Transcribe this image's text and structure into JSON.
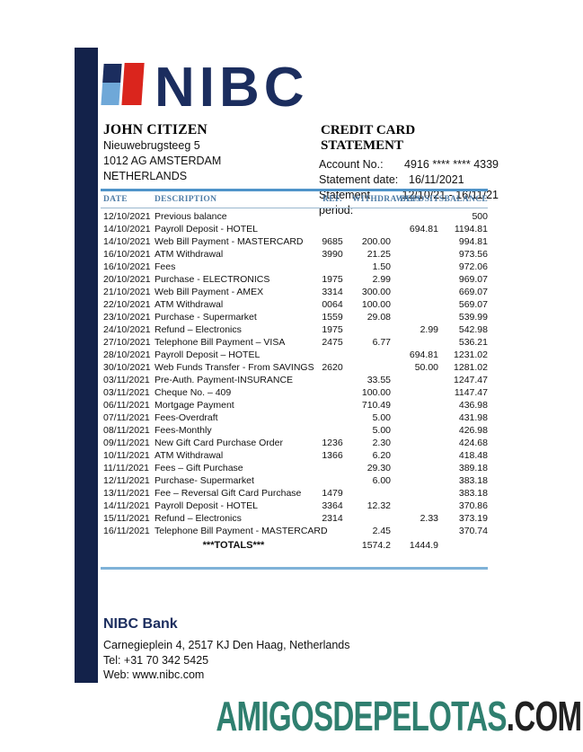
{
  "logo": {
    "text": "NIBC",
    "navy": "#1b2d5e",
    "light_blue": "#6fa8d8",
    "red": "#da251d"
  },
  "customer": {
    "name": "JOHN CITIZEN",
    "address_lines": [
      "Nieuwebrugsteeg 5",
      "1012 AG AMSTERDAM",
      "NETHERLANDS"
    ]
  },
  "statement": {
    "title": "CREDIT CARD STATEMENT",
    "fields": [
      {
        "label": "Account No.:",
        "value": "4916 **** **** 4339"
      },
      {
        "label": "Statement date:",
        "value": "16/11/2021"
      },
      {
        "label": "Statement period:",
        "value": "12/10/21 - 16/11/21"
      }
    ]
  },
  "table": {
    "columns": [
      "DATE",
      "DESCRIPTION",
      "REF.",
      "WITHDRAWALS",
      "DEPOSITS",
      "BALANCE"
    ],
    "header_color": "#4e7ca6",
    "rows": [
      {
        "date": "12/10/2021",
        "description": "Previous balance",
        "ref": "",
        "withdrawal": "",
        "deposit": "",
        "balance": "500"
      },
      {
        "date": "14/10/2021",
        "description": "Payroll Deposit - HOTEL",
        "ref": "",
        "withdrawal": "",
        "deposit": "694.81",
        "balance": "1194.81"
      },
      {
        "date": "14/10/2021",
        "description": "Web Bill Payment  - MASTERCARD",
        "ref": "9685",
        "withdrawal": "200.00",
        "deposit": "",
        "balance": "994.81"
      },
      {
        "date": "16/10/2021",
        "description": "ATM Withdrawal",
        "ref": "3990",
        "withdrawal": "21.25",
        "deposit": "",
        "balance": "973.56"
      },
      {
        "date": "16/10/2021",
        "description": "Fees",
        "ref": "",
        "withdrawal": "1.50",
        "deposit": "",
        "balance": "972.06"
      },
      {
        "date": "20/10/2021",
        "description": "Purchase  - ELECTRONICS",
        "ref": "1975",
        "withdrawal": "2.99",
        "deposit": "",
        "balance": "969.07"
      },
      {
        "date": "21/10/2021",
        "description": "Web Bill Payment - AMEX",
        "ref": "3314",
        "withdrawal": "300.00",
        "deposit": "",
        "balance": "669.07"
      },
      {
        "date": "22/10/2021",
        "description": "ATM Withdrawal",
        "ref": "0064",
        "withdrawal": "100.00",
        "deposit": "",
        "balance": "569.07"
      },
      {
        "date": "23/10/2021",
        "description": "Purchase - Supermarket",
        "ref": "1559",
        "withdrawal": "29.08",
        "deposit": "",
        "balance": "539.99"
      },
      {
        "date": "24/10/2021",
        "description": "Refund – Electronics",
        "ref": "1975",
        "withdrawal": "",
        "deposit": "2.99",
        "balance": "542.98"
      },
      {
        "date": "27/10/2021",
        "description": "Telephone Bill Payment – VISA",
        "ref": "2475",
        "withdrawal": "6.77",
        "deposit": "",
        "balance": "536.21"
      },
      {
        "date": "28/10/2021",
        "description": "Payroll Deposit – HOTEL",
        "ref": "",
        "withdrawal": "",
        "deposit": "694.81",
        "balance": "1231.02"
      },
      {
        "date": "30/10/2021",
        "description": "Web Funds Transfer - From SAVINGS",
        "ref": "2620",
        "withdrawal": "",
        "deposit": "50.00",
        "balance": "1281.02"
      },
      {
        "date": "03/11/2021",
        "description": "Pre-Auth. Payment-INSURANCE",
        "ref": "",
        "withdrawal": "33.55",
        "deposit": "",
        "balance": "1247.47"
      },
      {
        "date": "03/11/2021",
        "description": "Cheque No. – 409",
        "ref": "",
        "withdrawal": "100.00",
        "deposit": "",
        "balance": "1147.47"
      },
      {
        "date": "06/11/2021",
        "description": "Mortgage Payment",
        "ref": "",
        "withdrawal": "710.49",
        "deposit": "",
        "balance": "436.98"
      },
      {
        "date": "07/11/2021",
        "description": "Fees-Overdraft",
        "ref": "",
        "withdrawal": "5.00",
        "deposit": "",
        "balance": "431.98"
      },
      {
        "date": "08/11/2021",
        "description": "Fees-Monthly",
        "ref": "",
        "withdrawal": "5.00",
        "deposit": "",
        "balance": "426.98"
      },
      {
        "date": "09/11/2021",
        "description": "New Gift Card Purchase Order",
        "ref": "1236",
        "withdrawal": "2.30",
        "deposit": "",
        "balance": "424.68"
      },
      {
        "date": "10/11/2021",
        "description": "ATM Withdrawal",
        "ref": "1366",
        "withdrawal": "6.20",
        "deposit": "",
        "balance": "418.48"
      },
      {
        "date": "11/11/2021",
        "description": "Fees – Gift Purchase",
        "ref": "",
        "withdrawal": "29.30",
        "deposit": "",
        "balance": "389.18"
      },
      {
        "date": "12/11/2021",
        "description": "Purchase- Supermarket",
        "ref": "",
        "withdrawal": "6.00",
        "deposit": "",
        "balance": "383.18"
      },
      {
        "date": "13/11/2021",
        "description": "Fee – Reversal Gift Card Purchase",
        "ref": "1479",
        "withdrawal": "",
        "deposit": "",
        "balance": "383.18"
      },
      {
        "date": "14/11/2021",
        "description": "Payroll Deposit - HOTEL",
        "ref": "3364",
        "withdrawal": "12.32",
        "deposit": "",
        "balance": "370.86"
      },
      {
        "date": "15/11/2021",
        "description": "Refund – Electronics",
        "ref": "2314",
        "withdrawal": "",
        "deposit": "2.33",
        "balance": "373.19"
      },
      {
        "date": "16/11/2021",
        "description": "Telephone Bill Payment - MASTERCARD",
        "ref": "",
        "withdrawal": "2.45",
        "deposit": "",
        "balance": "370.74"
      }
    ],
    "totals": {
      "label": "***TOTALS***",
      "withdrawals": "1574.2",
      "deposits": "1444.9"
    }
  },
  "footer": {
    "bank_name": "NIBC Bank",
    "lines": [
      "Carnegieplein 4, 2517 KJ Den Haag, Netherlands",
      "Tel: +31 70 342 5425",
      "Web: www.nibc.com"
    ]
  },
  "watermark": {
    "primary": "AMIGOSDEPELOTAS",
    "secondary": ".COM",
    "primary_color": "#2f7f6f",
    "secondary_color": "#212121"
  }
}
